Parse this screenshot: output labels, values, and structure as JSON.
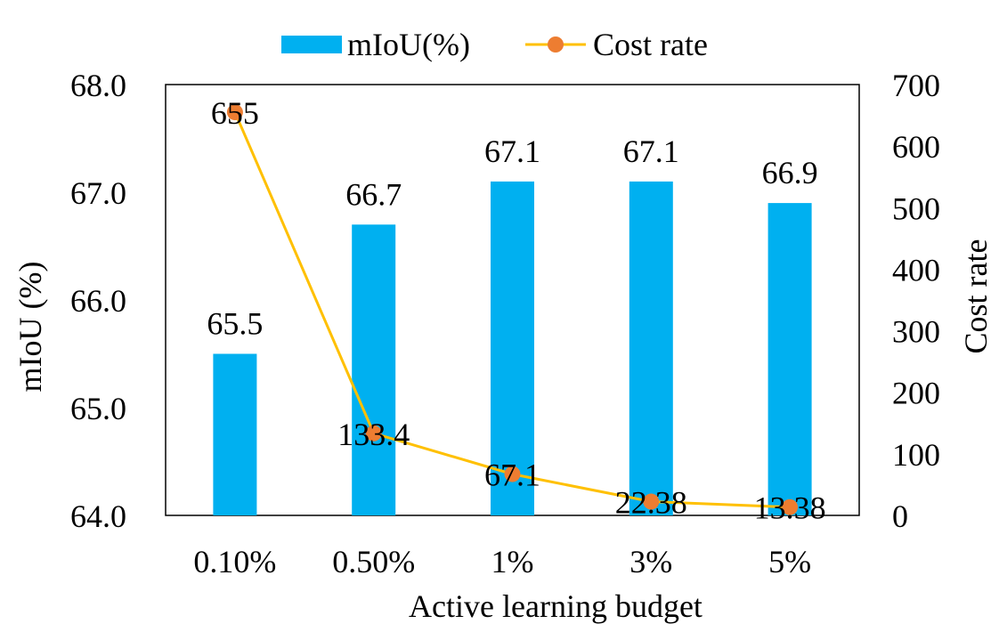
{
  "chart_data": {
    "type": "bar+line",
    "categories": [
      "0.10%",
      "0.50%",
      "1%",
      "3%",
      "5%"
    ],
    "series": [
      {
        "name": "mIoU(%)",
        "kind": "bar",
        "axis": "left",
        "values": [
          65.5,
          66.7,
          67.1,
          67.1,
          66.9
        ],
        "labels": [
          "65.5",
          "66.7",
          "67.1",
          "67.1",
          "66.9"
        ],
        "color": "#00b0f0"
      },
      {
        "name": "Cost rate",
        "kind": "line",
        "axis": "right",
        "values": [
          655,
          133.4,
          67.1,
          22.38,
          13.38
        ],
        "labels": [
          "655",
          "133.4",
          "67.1",
          "22.38",
          "13.38"
        ],
        "color": "#ffc000",
        "marker_color": "#ed7d31"
      }
    ],
    "xlabel": "Active learning budget",
    "ylabel": "mIoU (%)",
    "y2label": "Cost rate",
    "ylim": [
      64.0,
      68.0
    ],
    "y2lim": [
      0,
      700
    ],
    "yticks": [
      "64.0",
      "65.0",
      "66.0",
      "67.0",
      "68.0"
    ],
    "y2ticks": [
      "0",
      "100",
      "200",
      "300",
      "400",
      "500",
      "600",
      "700"
    ],
    "legend_position": "top-center",
    "grid": false
  }
}
